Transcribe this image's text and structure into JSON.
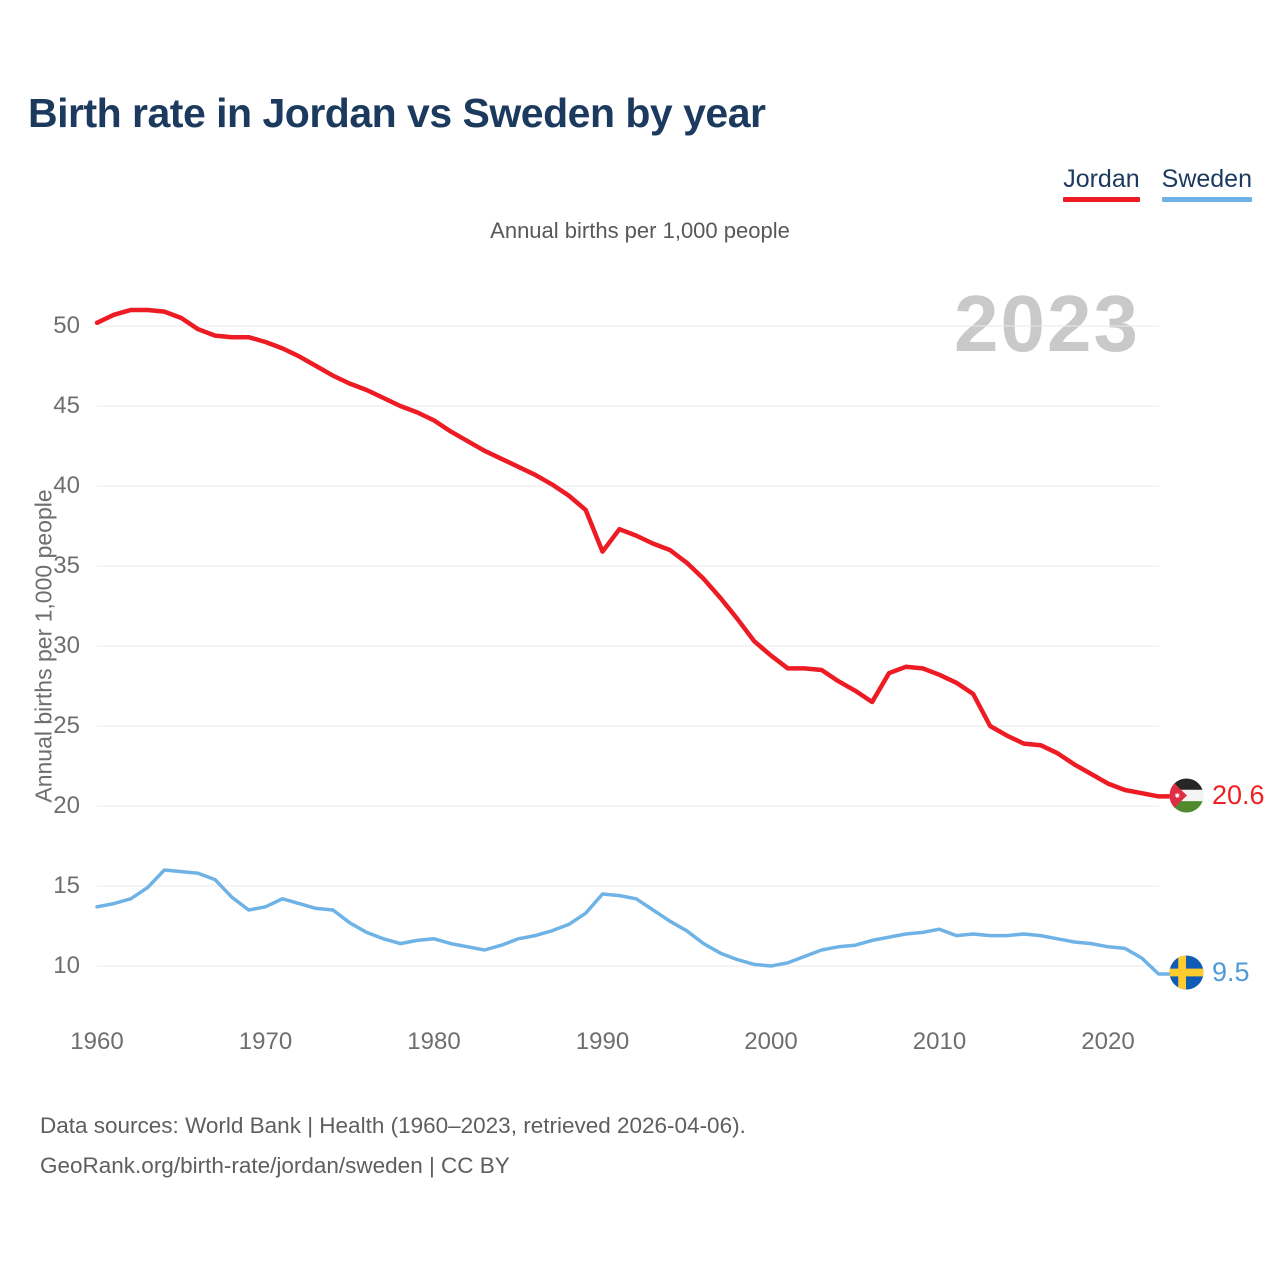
{
  "header": {
    "title": "Birth rate in Jordan vs Sweden by year"
  },
  "legend": {
    "items": [
      {
        "label": "Jordan",
        "color": "#ed1c24"
      },
      {
        "label": "Sweden",
        "color": "#6fb3e6"
      }
    ]
  },
  "chart": {
    "subtitle": "Annual births per 1,000 people",
    "watermark_year": "2023"
  },
  "chart_data": {
    "type": "line",
    "title": "Birth rate in Jordan vs Sweden by year",
    "subtitle": "Annual births per 1,000 people",
    "ylabel": "Annual births per 1,000 people",
    "xlabel": "",
    "grid": "horizontal",
    "legend_position": "top-right",
    "xlim": [
      1960,
      2023
    ],
    "ylim": [
      8,
      52
    ],
    "x_ticks": [
      1960,
      1970,
      1980,
      1990,
      2000,
      2010,
      2020
    ],
    "y_ticks": [
      10,
      15,
      20,
      25,
      30,
      35,
      40,
      45,
      50
    ],
    "x": [
      1960,
      1961,
      1962,
      1963,
      1964,
      1965,
      1966,
      1967,
      1968,
      1969,
      1970,
      1971,
      1972,
      1973,
      1974,
      1975,
      1976,
      1977,
      1978,
      1979,
      1980,
      1981,
      1982,
      1983,
      1984,
      1985,
      1986,
      1987,
      1988,
      1989,
      1990,
      1991,
      1992,
      1993,
      1994,
      1995,
      1996,
      1997,
      1998,
      1999,
      2000,
      2001,
      2002,
      2003,
      2004,
      2005,
      2006,
      2007,
      2008,
      2009,
      2010,
      2011,
      2012,
      2013,
      2014,
      2015,
      2016,
      2017,
      2018,
      2019,
      2020,
      2021,
      2022,
      2023
    ],
    "series": [
      {
        "name": "Jordan",
        "color": "#ed1c24",
        "values": [
          50.2,
          50.7,
          51.0,
          51.0,
          50.9,
          50.5,
          49.8,
          49.4,
          49.3,
          49.3,
          49.0,
          48.6,
          48.1,
          47.5,
          46.9,
          46.4,
          46.0,
          45.5,
          45.0,
          44.6,
          44.1,
          43.4,
          42.8,
          42.2,
          41.7,
          41.2,
          40.7,
          40.1,
          39.4,
          38.5,
          35.9,
          37.3,
          36.9,
          36.4,
          36.0,
          35.2,
          34.2,
          33.0,
          31.7,
          30.3,
          29.4,
          28.6,
          28.6,
          28.5,
          27.8,
          27.2,
          26.5,
          28.3,
          28.7,
          28.6,
          28.2,
          27.7,
          27.0,
          25.0,
          24.4,
          23.9,
          23.8,
          23.3,
          22.6,
          22.0,
          21.4,
          21.0,
          20.8,
          20.6
        ]
      },
      {
        "name": "Sweden",
        "color": "#6fb3e6",
        "values": [
          13.7,
          13.9,
          14.2,
          14.9,
          16.0,
          15.9,
          15.8,
          15.4,
          14.3,
          13.5,
          13.7,
          14.2,
          13.9,
          13.6,
          13.5,
          12.7,
          12.1,
          11.7,
          11.4,
          11.6,
          11.7,
          11.4,
          11.2,
          11.0,
          11.3,
          11.7,
          11.9,
          12.2,
          12.6,
          13.3,
          14.5,
          14.4,
          14.2,
          13.5,
          12.8,
          12.2,
          11.4,
          10.8,
          10.4,
          10.1,
          10.0,
          10.2,
          10.6,
          11.0,
          11.2,
          11.3,
          11.6,
          11.8,
          12.0,
          12.1,
          12.3,
          11.9,
          12.0,
          11.9,
          11.9,
          12.0,
          11.9,
          11.7,
          11.5,
          11.4,
          11.2,
          11.1,
          10.5,
          9.5
        ]
      }
    ],
    "end_labels": [
      {
        "series": "Jordan",
        "text": "20.6"
      },
      {
        "series": "Sweden",
        "text": "9.5"
      }
    ]
  },
  "footer": {
    "line1": "Data sources: World Bank | Health (1960–2023, retrieved 2026-04-06).",
    "line2": "GeoRank.org/birth-rate/jordan/sweden | CC BY"
  }
}
